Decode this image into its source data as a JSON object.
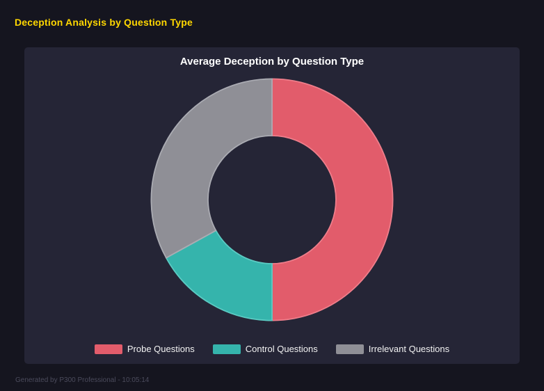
{
  "header": {
    "title": "Deception Analysis by Question Type"
  },
  "footer": {
    "text": "Generated by P300 Professional - 10:05:14"
  },
  "chart_data": {
    "type": "pie",
    "subtype": "doughnut",
    "title": "Average Deception by Question Type",
    "labels": [
      "Probe Questions",
      "Control Questions",
      "Irrelevant Questions"
    ],
    "values": [
      50,
      17,
      33
    ],
    "values_note": "percent share of donut, estimated from arc angles; no numeric data labels shown",
    "colors": [
      "#e25c6b",
      "#35b4ac",
      "#8f8f96"
    ],
    "border_colors": [
      "#ef7e8b",
      "#5bcbc3",
      "#abacb3"
    ],
    "legend_position": "bottom",
    "hole_ratio": 0.53,
    "start_angle_deg": 0,
    "direction": "clockwise"
  }
}
